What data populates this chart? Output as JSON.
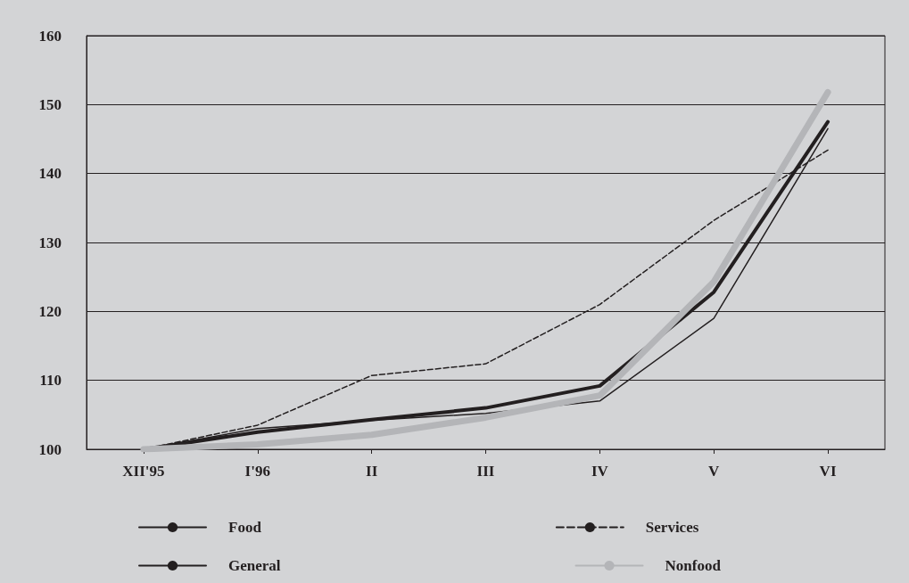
{
  "chart_data": {
    "type": "line",
    "categories": [
      "XII'95",
      "I'96",
      "II",
      "III",
      "IV",
      "V",
      "VI"
    ],
    "series": [
      {
        "name": "Food",
        "color": "#231f20",
        "line_style": "solid",
        "values": [
          100,
          103.0,
          104.2,
          105.2,
          107.0,
          119.0,
          146.5
        ]
      },
      {
        "name": "Services",
        "color": "#231f20",
        "line_style": "dashed",
        "values": [
          100,
          103.5,
          110.7,
          112.4,
          121.0,
          133.2,
          143.4
        ]
      },
      {
        "name": "General",
        "color": "#231f20",
        "line_style": "solid",
        "values": [
          100,
          102.5,
          104.3,
          106.0,
          109.2,
          122.8,
          147.5
        ]
      },
      {
        "name": "Nonfood",
        "color": "#b4b5b8",
        "line_style": "solid",
        "values": [
          100,
          100.7,
          102.1,
          104.6,
          107.8,
          124.3,
          151.8
        ]
      }
    ],
    "ylim": [
      100,
      160
    ],
    "yticks": [
      100,
      110,
      120,
      130,
      140,
      150,
      160
    ],
    "grid": "y",
    "legend": "bottom",
    "marker": "none"
  }
}
